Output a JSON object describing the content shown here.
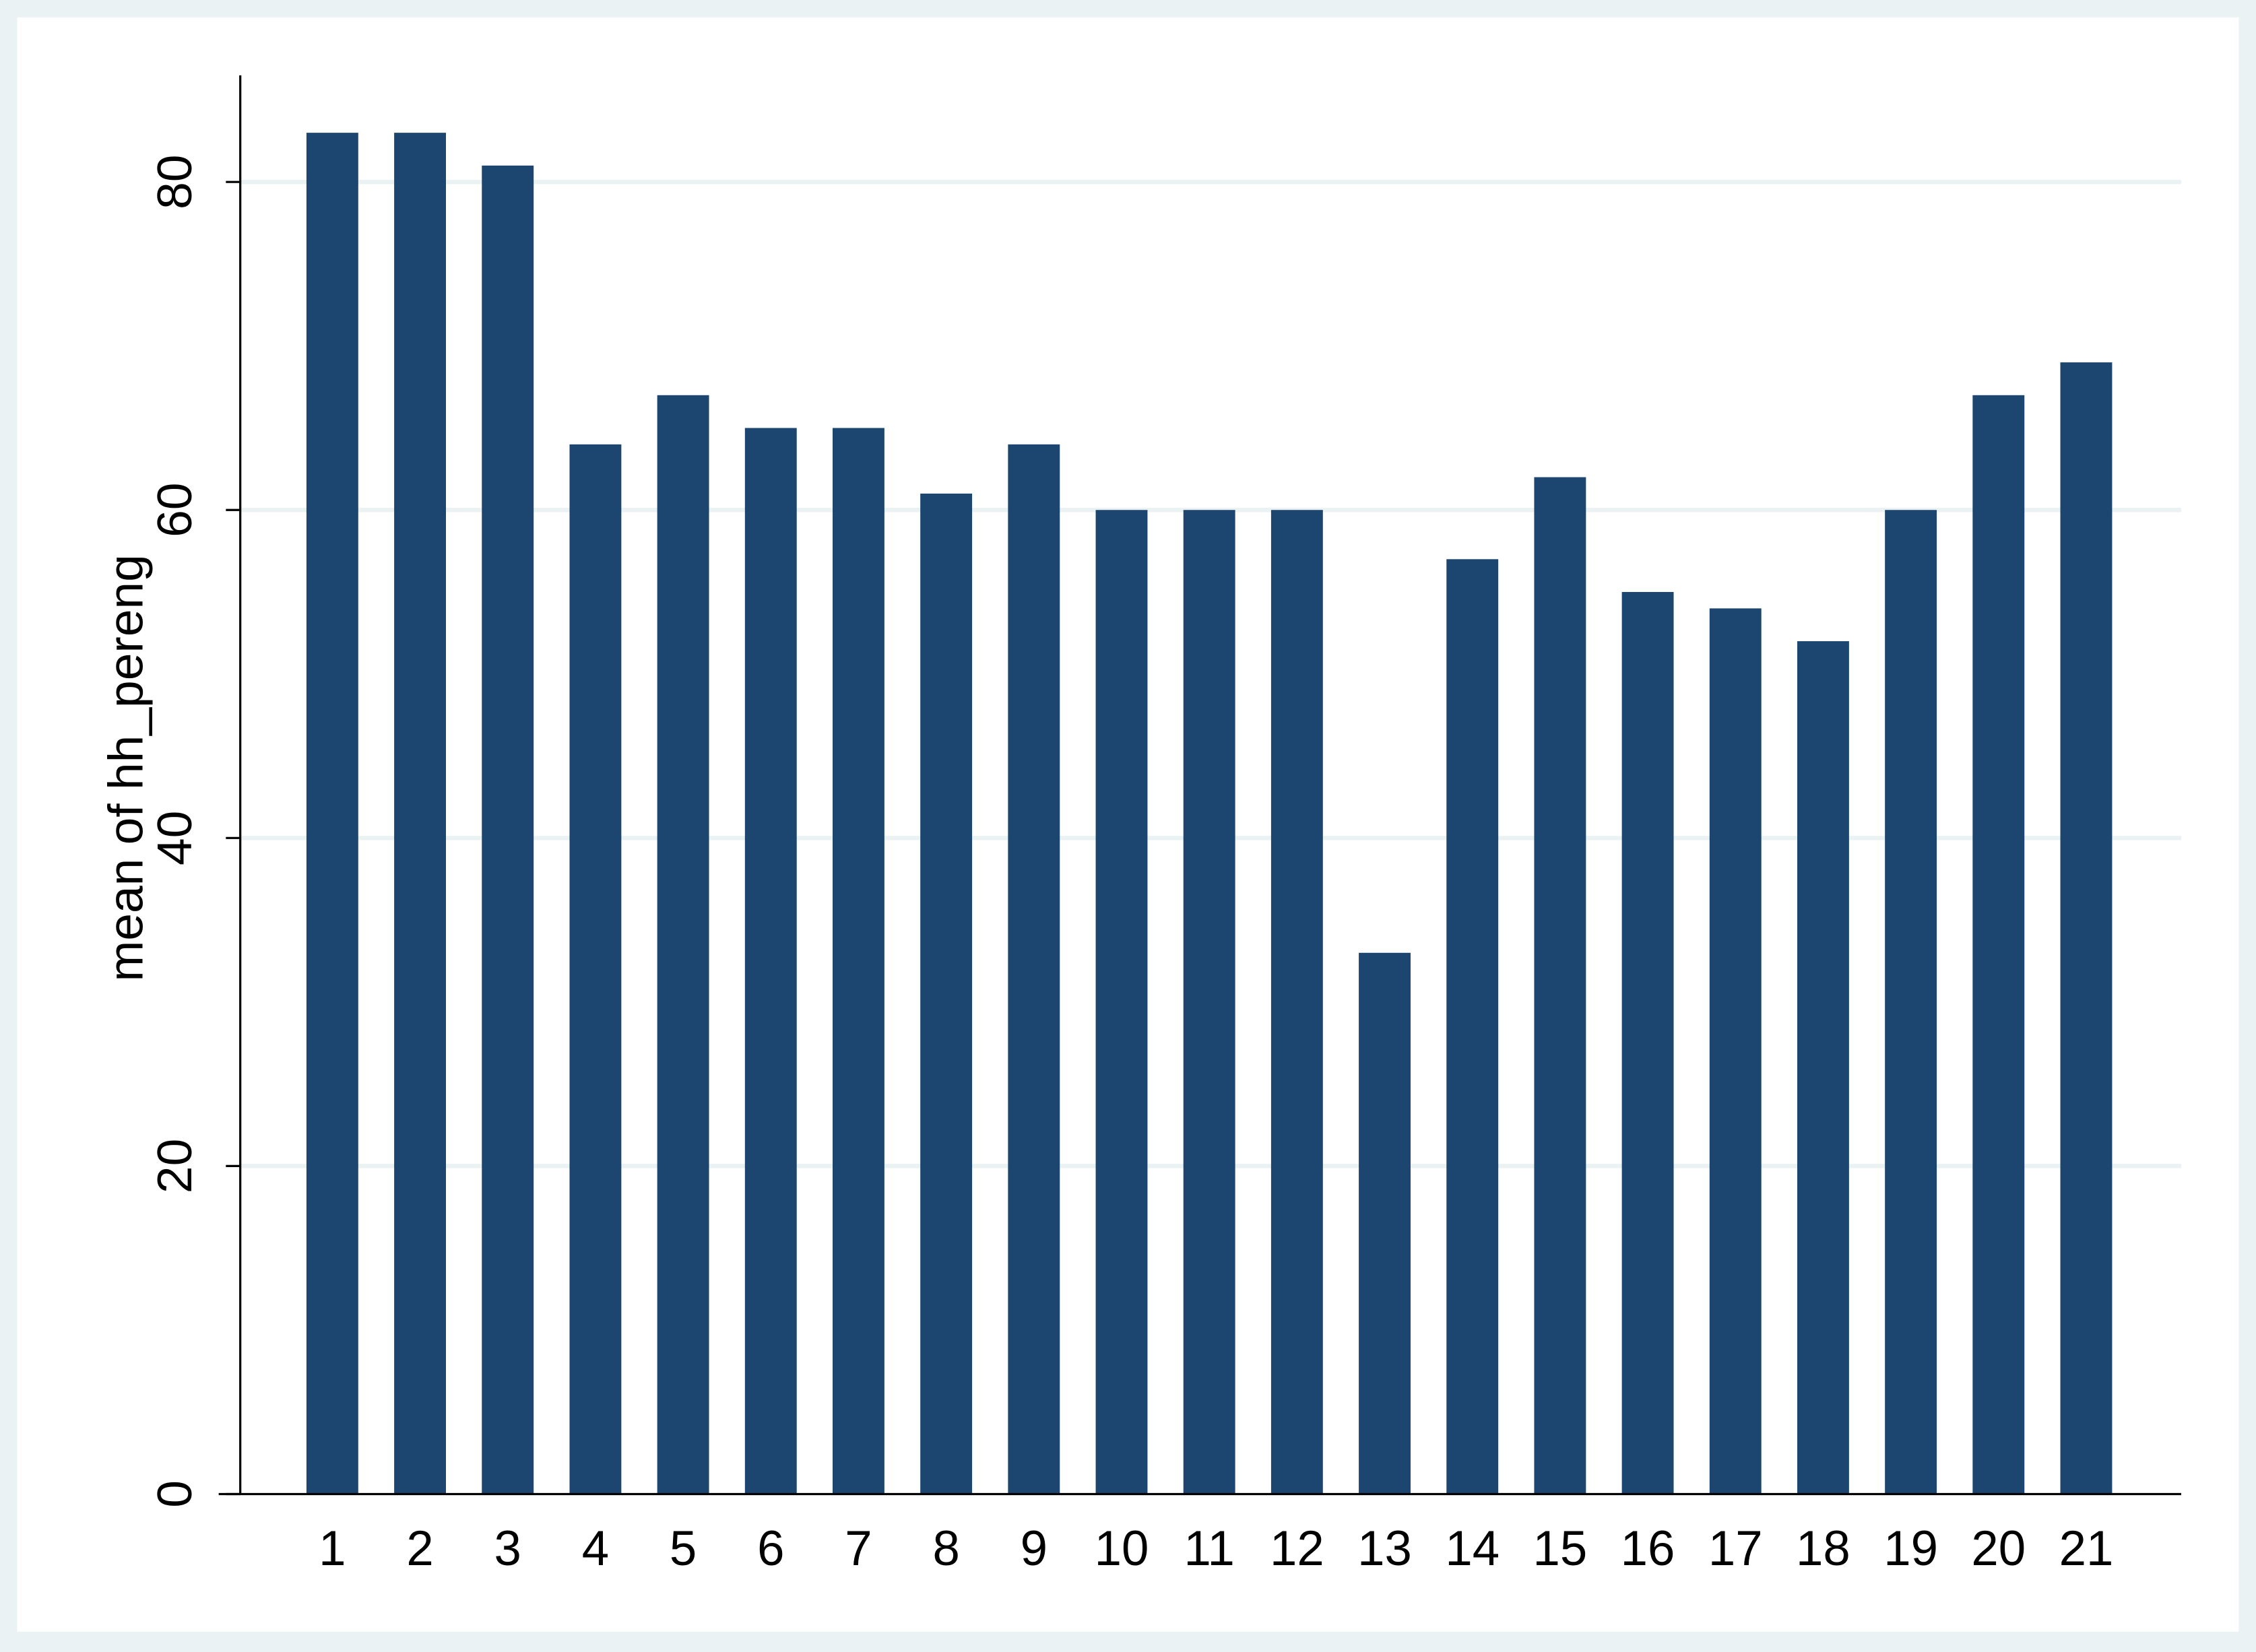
{
  "chart_data": {
    "type": "bar",
    "y_label": "mean of hh_pereng",
    "categories": [
      "1",
      "2",
      "3",
      "4",
      "5",
      "6",
      "7",
      "8",
      "9",
      "10",
      "11",
      "12",
      "13",
      "14",
      "15",
      "16",
      "17",
      "18",
      "19",
      "20",
      "21"
    ],
    "values": [
      83,
      83,
      81,
      64,
      67,
      65,
      65,
      61,
      64,
      60,
      60,
      60,
      33,
      57,
      62,
      55,
      54,
      52,
      60,
      67,
      69
    ],
    "color": "#1c466f",
    "ylim": [
      0,
      86.5
    ],
    "yticks": [
      0,
      20,
      40,
      60,
      80
    ],
    "grid": true
  }
}
